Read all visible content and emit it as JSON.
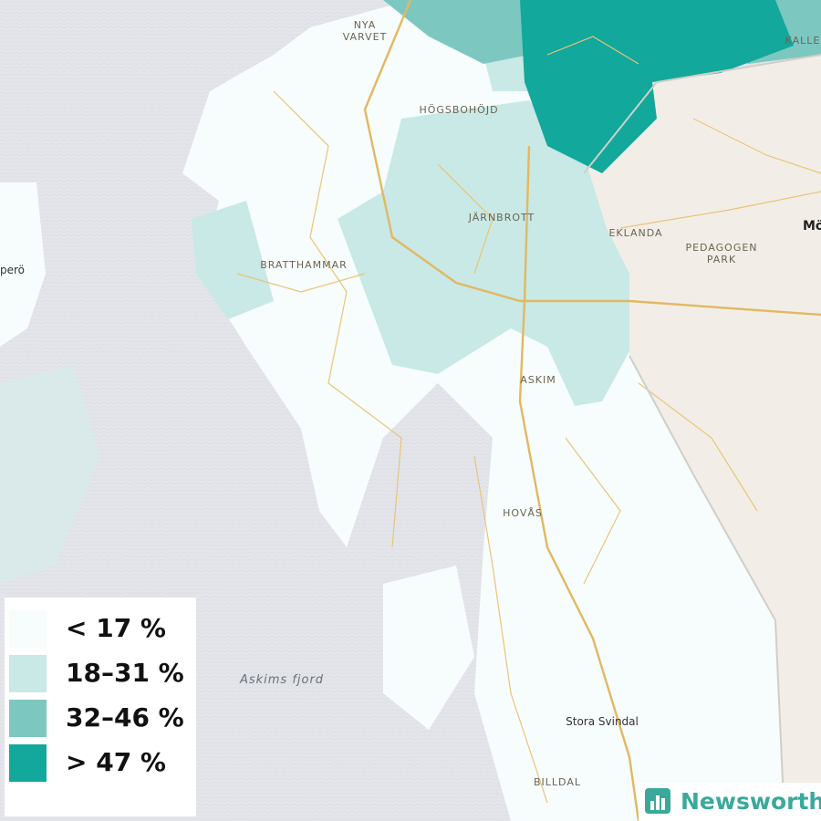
{
  "map": {
    "labels": [
      "NYA",
      "VARVET",
      "HÖGSBOHÖJD",
      "JÄRNBROTT",
      "EKLANDA",
      "PEDAGOGEN",
      "PARK",
      "BRATTHAMMAR",
      "ASKIM",
      "HOVÅS",
      "Stora Svindal",
      "BILLDAL",
      "KALLE",
      "Mö",
      "perö",
      "Askims fjord"
    ]
  },
  "legend": {
    "items": [
      {
        "label": "< 17 %",
        "color": "#f7fcfc"
      },
      {
        "label": "18–31 %",
        "color": "#c8e9e6"
      },
      {
        "label": "32–46 %",
        "color": "#7cc8c0"
      },
      {
        "label": "> 47 %",
        "color": "#12a89c"
      }
    ]
  },
  "brand": {
    "name": "Newsworthy"
  }
}
